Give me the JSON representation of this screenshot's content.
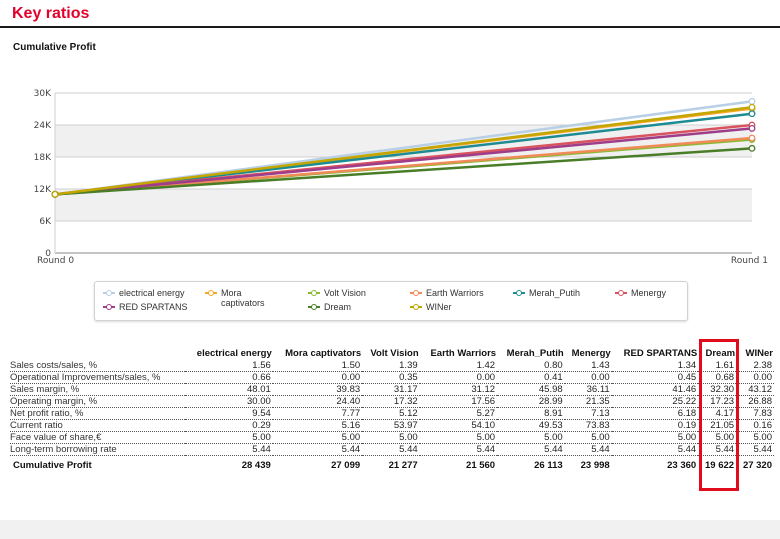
{
  "page": {
    "title": "Key ratios",
    "section_title": "Cumulative Profit"
  },
  "chart_data": {
    "type": "line",
    "x": [
      "Round 0",
      "Round 1"
    ],
    "ylim": [
      0,
      30000
    ],
    "yticks": [
      0,
      6000,
      12000,
      18000,
      24000,
      30000
    ],
    "ytick_labels": [
      "0",
      "6K",
      "12K",
      "18K",
      "24K",
      "30K"
    ],
    "grid": "horizontal bands",
    "legend_position": "bottom",
    "series": [
      {
        "name": "electrical energy",
        "color": "#b8cfe6",
        "values": [
          11000,
          28439
        ]
      },
      {
        "name": "Mora captivators",
        "color": "#f5a623",
        "values": [
          11000,
          27099
        ]
      },
      {
        "name": "Volt Vision",
        "color": "#8db833",
        "values": [
          11000,
          21277
        ]
      },
      {
        "name": "Earth Warriors",
        "color": "#f08a5a",
        "values": [
          11000,
          21560
        ]
      },
      {
        "name": "Merah_Putih",
        "color": "#1d8c92",
        "values": [
          11000,
          26113
        ]
      },
      {
        "name": "Menergy",
        "color": "#d9535e",
        "values": [
          11000,
          23998
        ]
      },
      {
        "name": "RED SPARTANS",
        "color": "#9e3d8a",
        "values": [
          11000,
          23360
        ]
      },
      {
        "name": "Dream",
        "color": "#4a7d28",
        "values": [
          11000,
          19622
        ]
      },
      {
        "name": "WINer",
        "color": "#c3a600",
        "values": [
          11000,
          27320
        ]
      }
    ]
  },
  "legend": [
    {
      "label": "electrical energy",
      "color": "#b8cfe6"
    },
    {
      "label": "Mora captivators",
      "color": "#f5a623"
    },
    {
      "label": "Volt Vision",
      "color": "#8db833"
    },
    {
      "label": "Earth Warriors",
      "color": "#f08a5a"
    },
    {
      "label": "Merah_Putih",
      "color": "#1d8c92"
    },
    {
      "label": "Menergy",
      "color": "#d9535e"
    },
    {
      "label": "RED SPARTANS",
      "color": "#9e3d8a"
    },
    {
      "label": "Dream",
      "color": "#4a7d28"
    },
    {
      "label": "WINer",
      "color": "#c3a600"
    }
  ],
  "table": {
    "headers": [
      "",
      "electrical energy",
      "Mora captivators",
      "Volt Vision",
      "Earth Warriors",
      "Merah_Putih",
      "Menergy",
      "RED SPARTANS",
      "Dream",
      "WINer"
    ],
    "rows": [
      {
        "label": "Sales costs/sales, %",
        "values": [
          "1.56",
          "1.50",
          "1.39",
          "1.42",
          "0.80",
          "1.43",
          "1.34",
          "1.61",
          "2.38"
        ]
      },
      {
        "label": "Operational Improvements/sales, %",
        "values": [
          "0.66",
          "0.00",
          "0.35",
          "0.00",
          "0.41",
          "0.00",
          "0.45",
          "0.68",
          "0.00"
        ]
      },
      {
        "label": "Sales margin, %",
        "values": [
          "48.01",
          "39.83",
          "31.17",
          "31.12",
          "45.98",
          "36.11",
          "41.46",
          "32.30",
          "43.12"
        ]
      },
      {
        "label": "Operating margin, %",
        "values": [
          "30.00",
          "24.40",
          "17.32",
          "17.56",
          "28.99",
          "21.35",
          "25.22",
          "17.23",
          "26.88"
        ]
      },
      {
        "label": "Net profit ratio, %",
        "values": [
          "9.54",
          "7.77",
          "5.12",
          "5.27",
          "8.91",
          "7.13",
          "6.18",
          "4.17",
          "7.83"
        ]
      },
      {
        "label": "Current ratio",
        "values": [
          "0.29",
          "5.16",
          "53.97",
          "54.10",
          "49.53",
          "73.83",
          "0.19",
          "21.05",
          "0.16"
        ]
      },
      {
        "label": "Face value of share,€",
        "values": [
          "5.00",
          "5.00",
          "5.00",
          "5.00",
          "5.00",
          "5.00",
          "5.00",
          "5.00",
          "5.00"
        ]
      },
      {
        "label": "Long-term borrowing rate",
        "values": [
          "5.44",
          "5.44",
          "5.44",
          "5.44",
          "5.44",
          "5.44",
          "5.44",
          "5.44",
          "5.44"
        ]
      }
    ],
    "total": {
      "label": "Cumulative Profit",
      "values": [
        "28 439",
        "27 099",
        "21 277",
        "21 560",
        "26 113",
        "23 998",
        "23 360",
        "19 622",
        "27 320"
      ]
    }
  },
  "highlight": {
    "column": "Dream",
    "color": "#e00b1c"
  }
}
